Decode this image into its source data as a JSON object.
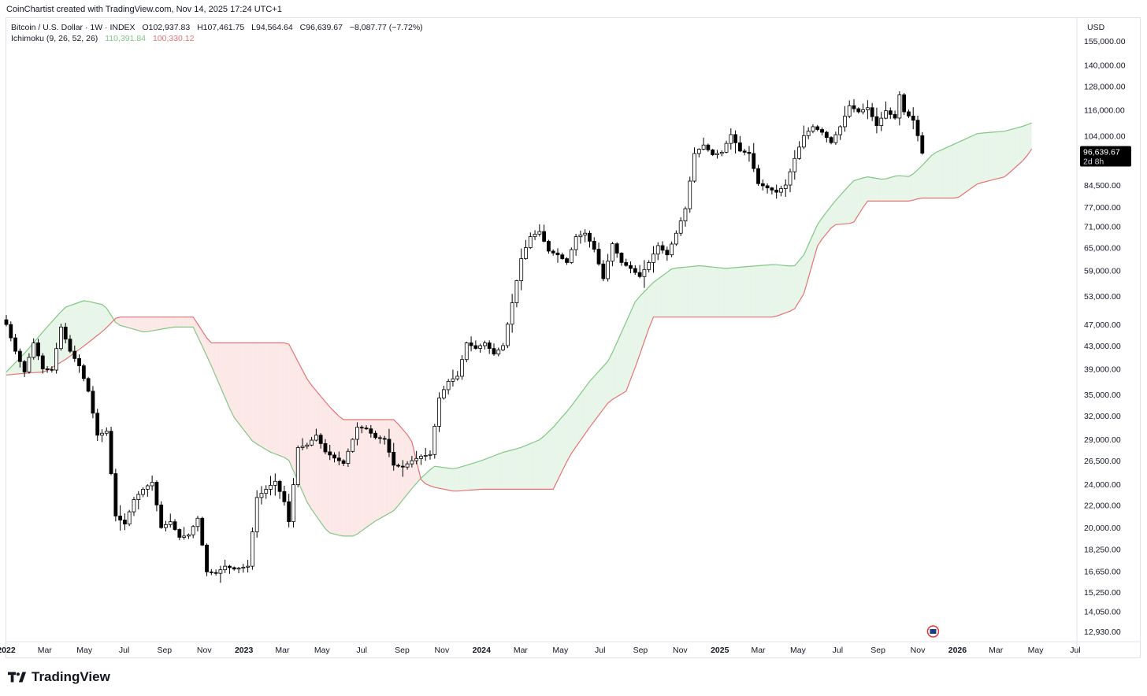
{
  "caption": "CoinChartist created with TradingView.com, Nov 14, 2025 17:24 UTC+1",
  "legend": {
    "symbol": "Bitcoin / U.S. Dollar · 1W · INDEX",
    "open": "O102,937.83",
    "high": "H107,461.75",
    "low": "L94,564.64",
    "close": "C96,639.67",
    "change": "−8,087.77 (−7.72%)",
    "indicator": "Ichimoku (9, 26, 52, 26)",
    "span_a": "110,391.84",
    "span_b": "100,330.12"
  },
  "price_badge": {
    "price": "96,639.67",
    "countdown": "2d 8h"
  },
  "brand": "TradingView",
  "colors": {
    "candle": "#000000",
    "span_a": "#81c784",
    "span_b": "#e57373",
    "cloud_up": "#e8f5e9",
    "cloud_down": "#fde8e8"
  },
  "chart_data": {
    "type": "candlestick",
    "currency": "USD",
    "scale": "log",
    "ylim": [
      12500,
      170000
    ],
    "y_ticks": [
      {
        "value": 155000,
        "label": "155,000.00"
      },
      {
        "value": 140000,
        "label": "140,000.00"
      },
      {
        "value": 128000,
        "label": "128,000.00"
      },
      {
        "value": 116000,
        "label": "116,000.00"
      },
      {
        "value": 104000,
        "label": "104,000.00"
      },
      {
        "value": 84500,
        "label": "84,500.00"
      },
      {
        "value": 77000,
        "label": "77,000.00"
      },
      {
        "value": 71000,
        "label": "71,000.00"
      },
      {
        "value": 65000,
        "label": "65,000.00"
      },
      {
        "value": 59000,
        "label": "59,000.00"
      },
      {
        "value": 53000,
        "label": "53,000.00"
      },
      {
        "value": 47000,
        "label": "47,000.00"
      },
      {
        "value": 43000,
        "label": "43,000.00"
      },
      {
        "value": 39000,
        "label": "39,000.00"
      },
      {
        "value": 35000,
        "label": "35,000.00"
      },
      {
        "value": 32000,
        "label": "32,000.00"
      },
      {
        "value": 29000,
        "label": "29,000.00"
      },
      {
        "value": 26500,
        "label": "26,500.00"
      },
      {
        "value": 24000,
        "label": "24,000.00"
      },
      {
        "value": 22000,
        "label": "22,000.00"
      },
      {
        "value": 20000,
        "label": "20,000.00"
      },
      {
        "value": 18250,
        "label": "18,250.00"
      },
      {
        "value": 16650,
        "label": "16,650.00"
      },
      {
        "value": 15250,
        "label": "15,250.00"
      },
      {
        "value": 14050,
        "label": "14,050.00"
      },
      {
        "value": 12930,
        "label": "12,930.00"
      }
    ],
    "x_start": "2022-01-01",
    "x_end": "2026-07-01",
    "x_ticks": [
      {
        "date": "2022-01-01",
        "label": "2022",
        "bold": true
      },
      {
        "date": "2022-03-01",
        "label": "Mar",
        "bold": false
      },
      {
        "date": "2022-05-01",
        "label": "May",
        "bold": false
      },
      {
        "date": "2022-07-01",
        "label": "Jul",
        "bold": false
      },
      {
        "date": "2022-09-01",
        "label": "Sep",
        "bold": false
      },
      {
        "date": "2022-11-01",
        "label": "Nov",
        "bold": false
      },
      {
        "date": "2023-01-01",
        "label": "2023",
        "bold": true
      },
      {
        "date": "2023-03-01",
        "label": "Mar",
        "bold": false
      },
      {
        "date": "2023-05-01",
        "label": "May",
        "bold": false
      },
      {
        "date": "2023-07-01",
        "label": "Jul",
        "bold": false
      },
      {
        "date": "2023-09-01",
        "label": "Sep",
        "bold": false
      },
      {
        "date": "2023-11-01",
        "label": "Nov",
        "bold": false
      },
      {
        "date": "2024-01-01",
        "label": "2024",
        "bold": true
      },
      {
        "date": "2024-03-01",
        "label": "Mar",
        "bold": false
      },
      {
        "date": "2024-05-01",
        "label": "May",
        "bold": false
      },
      {
        "date": "2024-07-01",
        "label": "Jul",
        "bold": false
      },
      {
        "date": "2024-09-01",
        "label": "Sep",
        "bold": false
      },
      {
        "date": "2024-11-01",
        "label": "Nov",
        "bold": false
      },
      {
        "date": "2025-01-01",
        "label": "2025",
        "bold": true
      },
      {
        "date": "2025-03-01",
        "label": "Mar",
        "bold": false
      },
      {
        "date": "2025-05-01",
        "label": "May",
        "bold": false
      },
      {
        "date": "2025-07-01",
        "label": "Jul",
        "bold": false
      },
      {
        "date": "2025-09-01",
        "label": "Sep",
        "bold": false
      },
      {
        "date": "2025-11-01",
        "label": "Nov",
        "bold": false
      },
      {
        "date": "2026-01-01",
        "label": "2026",
        "bold": true
      },
      {
        "date": "2026-03-01",
        "label": "Mar",
        "bold": false
      },
      {
        "date": "2026-05-01",
        "label": "May",
        "bold": false
      },
      {
        "date": "2026-07-01",
        "label": "Jul",
        "bold": false
      }
    ],
    "price_path": [
      [
        "2022-01-01",
        47000
      ],
      [
        "2022-01-15",
        42000
      ],
      [
        "2022-01-29",
        38500
      ],
      [
        "2022-02-12",
        43500
      ],
      [
        "2022-02-26",
        39000
      ],
      [
        "2022-03-12",
        38800
      ],
      [
        "2022-03-26",
        46500
      ],
      [
        "2022-04-09",
        42000
      ],
      [
        "2022-04-23",
        39500
      ],
      [
        "2022-05-07",
        35500
      ],
      [
        "2022-05-21",
        29500
      ],
      [
        "2022-06-04",
        30000
      ],
      [
        "2022-06-18",
        21000
      ],
      [
        "2022-07-02",
        20300
      ],
      [
        "2022-07-16",
        22500
      ],
      [
        "2022-07-30",
        23500
      ],
      [
        "2022-08-13",
        24200
      ],
      [
        "2022-08-27",
        20000
      ],
      [
        "2022-09-10",
        20500
      ],
      [
        "2022-09-24",
        19200
      ],
      [
        "2022-10-08",
        19400
      ],
      [
        "2022-10-22",
        20800
      ],
      [
        "2022-11-05",
        16600
      ],
      [
        "2022-11-19",
        16500
      ],
      [
        "2022-12-03",
        17000
      ],
      [
        "2022-12-17",
        16800
      ],
      [
        "2023-01-07",
        17000
      ],
      [
        "2023-01-21",
        22700
      ],
      [
        "2023-02-04",
        23500
      ],
      [
        "2023-02-18",
        24300
      ],
      [
        "2023-03-04",
        22300
      ],
      [
        "2023-03-11",
        20500
      ],
      [
        "2023-03-25",
        28000
      ],
      [
        "2023-04-08",
        28300
      ],
      [
        "2023-04-22",
        29500
      ],
      [
        "2023-05-06",
        27500
      ],
      [
        "2023-05-20",
        26800
      ],
      [
        "2023-06-03",
        26200
      ],
      [
        "2023-06-24",
        30500
      ],
      [
        "2023-07-08",
        30300
      ],
      [
        "2023-07-22",
        29200
      ],
      [
        "2023-08-05",
        29000
      ],
      [
        "2023-08-19",
        26000
      ],
      [
        "2023-09-02",
        25800
      ],
      [
        "2023-09-16",
        26500
      ],
      [
        "2023-09-30",
        27000
      ],
      [
        "2023-10-14",
        27200
      ],
      [
        "2023-10-28",
        34500
      ],
      [
        "2023-11-11",
        37000
      ],
      [
        "2023-11-25",
        37800
      ],
      [
        "2023-12-09",
        43500
      ],
      [
        "2023-12-23",
        42500
      ],
      [
        "2024-01-06",
        43500
      ],
      [
        "2024-01-20",
        41500
      ],
      [
        "2024-02-03",
        43000
      ],
      [
        "2024-02-17",
        51500
      ],
      [
        "2024-03-02",
        62000
      ],
      [
        "2024-03-16",
        68000
      ],
      [
        "2024-03-30",
        69500
      ],
      [
        "2024-04-13",
        64000
      ],
      [
        "2024-04-27",
        63000
      ],
      [
        "2024-05-11",
        61000
      ],
      [
        "2024-05-25",
        68000
      ],
      [
        "2024-06-08",
        69000
      ],
      [
        "2024-06-22",
        64500
      ],
      [
        "2024-07-06",
        57000
      ],
      [
        "2024-07-20",
        66000
      ],
      [
        "2024-08-03",
        61000
      ],
      [
        "2024-08-17",
        59500
      ],
      [
        "2024-08-31",
        57500
      ],
      [
        "2024-09-14",
        61000
      ],
      [
        "2024-09-28",
        65500
      ],
      [
        "2024-10-12",
        63000
      ],
      [
        "2024-10-26",
        69000
      ],
      [
        "2024-11-09",
        76500
      ],
      [
        "2024-11-23",
        96500
      ],
      [
        "2024-12-07",
        100000
      ],
      [
        "2024-12-21",
        96000
      ],
      [
        "2025-01-04",
        97000
      ],
      [
        "2025-01-18",
        104500
      ],
      [
        "2025-02-01",
        97500
      ],
      [
        "2025-02-15",
        96500
      ],
      [
        "2025-03-01",
        85000
      ],
      [
        "2025-03-15",
        83500
      ],
      [
        "2025-03-29",
        82000
      ],
      [
        "2025-04-12",
        84500
      ],
      [
        "2025-04-26",
        94500
      ],
      [
        "2025-05-10",
        104000
      ],
      [
        "2025-05-24",
        108000
      ],
      [
        "2025-06-07",
        105500
      ],
      [
        "2025-06-21",
        101000
      ],
      [
        "2025-07-05",
        108000
      ],
      [
        "2025-07-19",
        118000
      ],
      [
        "2025-08-02",
        115000
      ],
      [
        "2025-08-16",
        117000
      ],
      [
        "2025-08-30",
        108500
      ],
      [
        "2025-09-13",
        115500
      ],
      [
        "2025-09-27",
        112000
      ],
      [
        "2025-10-04",
        123500
      ],
      [
        "2025-10-11",
        115000
      ],
      [
        "2025-10-25",
        111000
      ],
      [
        "2025-11-01",
        104000
      ],
      [
        "2025-11-10",
        96639.67
      ]
    ],
    "span_a": [
      [
        "2022-01-01",
        38500
      ],
      [
        "2022-02-01",
        42000
      ],
      [
        "2022-03-01",
        46000
      ],
      [
        "2022-04-01",
        50500
      ],
      [
        "2022-05-01",
        52000
      ],
      [
        "2022-06-01",
        51000
      ],
      [
        "2022-06-20",
        47000
      ],
      [
        "2022-08-01",
        45500
      ],
      [
        "2022-09-15",
        46500
      ],
      [
        "2022-10-15",
        46500
      ],
      [
        "2022-11-10",
        40000
      ],
      [
        "2022-12-15",
        32000
      ],
      [
        "2023-01-15",
        28700
      ],
      [
        "2023-02-10",
        27500
      ],
      [
        "2023-03-10",
        26700
      ],
      [
        "2023-04-10",
        22000
      ],
      [
        "2023-05-10",
        19600
      ],
      [
        "2023-06-01",
        19300
      ],
      [
        "2023-06-20",
        19300
      ],
      [
        "2023-07-20",
        20500
      ],
      [
        "2023-08-20",
        21500
      ],
      [
        "2023-09-15",
        23500
      ],
      [
        "2023-10-01",
        24700
      ],
      [
        "2023-10-20",
        25900
      ],
      [
        "2023-11-20",
        25600
      ],
      [
        "2024-01-01",
        26500
      ],
      [
        "2024-02-01",
        27400
      ],
      [
        "2024-03-01",
        28000
      ],
      [
        "2024-04-01",
        29000
      ],
      [
        "2024-04-20",
        30500
      ],
      [
        "2024-05-15",
        33000
      ],
      [
        "2024-06-15",
        37000
      ],
      [
        "2024-07-15",
        40500
      ],
      [
        "2024-08-10",
        47500
      ],
      [
        "2024-08-25",
        52000
      ],
      [
        "2024-09-20",
        56000
      ],
      [
        "2024-10-20",
        59500
      ],
      [
        "2024-12-01",
        60200
      ],
      [
        "2025-01-10",
        59500
      ],
      [
        "2025-02-15",
        60000
      ],
      [
        "2025-03-25",
        60500
      ],
      [
        "2025-04-25",
        60000
      ],
      [
        "2025-05-10",
        63000
      ],
      [
        "2025-06-01",
        72000
      ],
      [
        "2025-06-25",
        78500
      ],
      [
        "2025-07-25",
        86000
      ],
      [
        "2025-08-15",
        87500
      ],
      [
        "2025-09-10",
        86500
      ],
      [
        "2025-10-01",
        88000
      ],
      [
        "2025-10-20",
        87500
      ],
      [
        "2025-11-05",
        91000
      ],
      [
        "2025-11-25",
        96500
      ],
      [
        "2026-01-01",
        101000
      ],
      [
        "2026-02-01",
        105000
      ],
      [
        "2026-03-15",
        106000
      ],
      [
        "2026-04-15",
        108500
      ],
      [
        "2026-04-30",
        110391.84
      ]
    ],
    "span_b": [
      [
        "2022-01-01",
        38000
      ],
      [
        "2022-02-01",
        38300
      ],
      [
        "2022-03-01",
        38500
      ],
      [
        "2022-04-01",
        40500
      ],
      [
        "2022-05-01",
        43000
      ],
      [
        "2022-06-01",
        46000
      ],
      [
        "2022-06-20",
        48500
      ],
      [
        "2022-08-01",
        48500
      ],
      [
        "2022-09-15",
        48500
      ],
      [
        "2022-10-15",
        48500
      ],
      [
        "2022-11-10",
        43500
      ],
      [
        "2022-12-15",
        43500
      ],
      [
        "2023-01-15",
        43500
      ],
      [
        "2023-02-10",
        43500
      ],
      [
        "2023-03-10",
        43500
      ],
      [
        "2023-04-10",
        37000
      ],
      [
        "2023-05-10",
        33500
      ],
      [
        "2023-06-01",
        31500
      ],
      [
        "2023-06-20",
        31500
      ],
      [
        "2023-07-20",
        31500
      ],
      [
        "2023-08-20",
        31500
      ],
      [
        "2023-09-15",
        29000
      ],
      [
        "2023-10-01",
        24200
      ],
      [
        "2023-10-20",
        23700
      ],
      [
        "2023-11-20",
        23300
      ],
      [
        "2024-01-01",
        23500
      ],
      [
        "2024-02-01",
        23500
      ],
      [
        "2024-03-01",
        23500
      ],
      [
        "2024-04-01",
        23500
      ],
      [
        "2024-04-20",
        23500
      ],
      [
        "2024-05-15",
        27000
      ],
      [
        "2024-06-15",
        30500
      ],
      [
        "2024-07-15",
        34000
      ],
      [
        "2024-08-10",
        35500
      ],
      [
        "2024-08-25",
        39500
      ],
      [
        "2024-09-20",
        48500
      ],
      [
        "2024-10-20",
        48500
      ],
      [
        "2024-12-01",
        48500
      ],
      [
        "2025-01-10",
        48500
      ],
      [
        "2025-02-15",
        48500
      ],
      [
        "2025-03-25",
        48500
      ],
      [
        "2025-04-25",
        50000
      ],
      [
        "2025-05-10",
        53500
      ],
      [
        "2025-06-01",
        66000
      ],
      [
        "2025-06-25",
        71500
      ],
      [
        "2025-07-25",
        72000
      ],
      [
        "2025-08-15",
        79000
      ],
      [
        "2025-09-10",
        79000
      ],
      [
        "2025-10-01",
        79000
      ],
      [
        "2025-10-20",
        79000
      ],
      [
        "2025-11-05",
        80000
      ],
      [
        "2025-11-25",
        80000
      ],
      [
        "2026-01-01",
        80000
      ],
      [
        "2026-02-01",
        85000
      ],
      [
        "2026-03-15",
        87500
      ],
      [
        "2026-04-15",
        94500
      ],
      [
        "2026-04-30",
        100330.12
      ]
    ]
  }
}
